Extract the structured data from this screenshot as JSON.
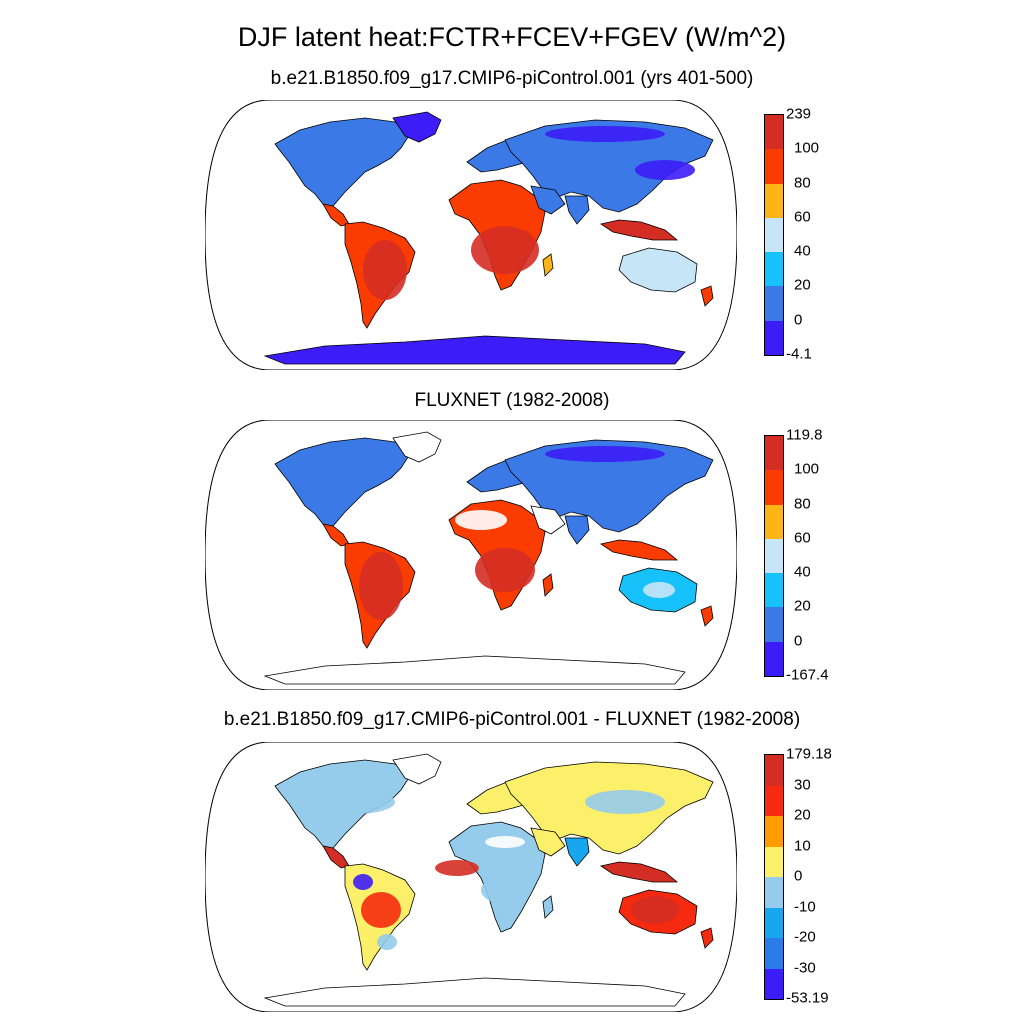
{
  "title": "DJF latent heat:FCTR+FCEV+FGEV (W/m^2)",
  "panels": [
    {
      "title": "b.e21.B1850.f09_g17.CMIP6-piControl.001 (yrs 401-500)",
      "labels": [
        "239",
        "100",
        "80",
        "60",
        "40",
        "20",
        "0",
        "-4.1"
      ],
      "colors": [
        "#d42d23",
        "#fb3c00",
        "#fdb416",
        "#c6e6f7",
        "#17c2fb",
        "#3b7ae6",
        "#3c1df7"
      ]
    },
    {
      "title": "FLUXNET (1982-2008)",
      "labels": [
        "119.8",
        "100",
        "80",
        "60",
        "40",
        "20",
        "0",
        "-167.4"
      ],
      "colors": [
        "#d42d23",
        "#fb3c00",
        "#fdb416",
        "#c6e6f7",
        "#17c2fb",
        "#3b7ae6",
        "#3c1df7"
      ]
    },
    {
      "title": "b.e21.B1850.f09_g17.CMIP6-piControl.001 - FLUXNET (1982-2008)",
      "labels": [
        "179.18",
        "30",
        "20",
        "10",
        "0",
        "-10",
        "-20",
        "-30",
        "-53.19"
      ],
      "colors": [
        "#d42d23",
        "#f52a0e",
        "#fd9c00",
        "#fcf06a",
        "#95cbeb",
        "#17a7ef",
        "#2a7ce8",
        "#3c1df7"
      ]
    }
  ]
}
